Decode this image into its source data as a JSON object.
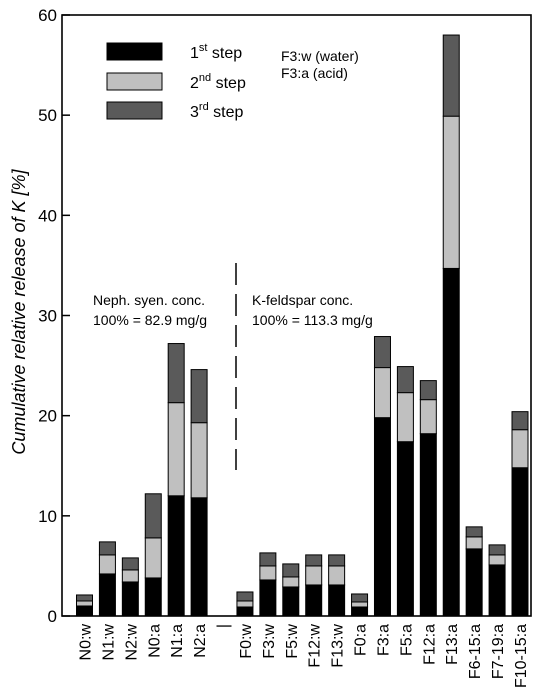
{
  "chart_data": {
    "type": "bar",
    "stacked": true,
    "ylabel": "Cumulative relative release of K [%]",
    "ylim": [
      0,
      60
    ],
    "yticks": [
      0,
      10,
      20,
      30,
      40,
      50,
      60
    ],
    "grid": false,
    "legend_position": "top-left",
    "categories": [
      "N0:w",
      "N1:w",
      "N2:w",
      "N0:a",
      "N1:a",
      "N2:a",
      "|",
      "F0:w",
      "F3:w",
      "F5:w",
      "F12:w",
      "F13:w",
      "F0:a",
      "F3:a",
      "F5:a",
      "F12:a",
      "F13:a",
      "F6-15:a",
      "F7-19:a",
      "F10-15:a"
    ],
    "series": [
      {
        "name": "1st step",
        "color": "#000000",
        "values": [
          1.0,
          4.2,
          3.4,
          3.8,
          12.0,
          11.8,
          null,
          0.9,
          3.6,
          2.9,
          3.1,
          3.1,
          0.9,
          19.8,
          17.4,
          18.2,
          34.7,
          6.7,
          5.1,
          14.8
        ]
      },
      {
        "name": "2nd step",
        "color": "#c0c0c0",
        "values": [
          0.5,
          1.9,
          1.2,
          4.0,
          9.3,
          7.5,
          null,
          0.6,
          1.4,
          1.0,
          1.9,
          1.9,
          0.5,
          5.0,
          4.9,
          3.4,
          15.2,
          1.2,
          1.0,
          3.8
        ]
      },
      {
        "name": "3rd step",
        "color": "#5a5a5a",
        "values": [
          0.6,
          1.3,
          1.2,
          4.4,
          5.9,
          5.3,
          null,
          0.9,
          1.3,
          1.3,
          1.1,
          1.1,
          0.8,
          3.1,
          2.6,
          1.9,
          8.1,
          1.0,
          1.0,
          1.8
        ]
      }
    ],
    "annotations": {
      "group_left": [
        "Neph. syen. conc.",
        "100% = 82.9 mg/g"
      ],
      "group_right": [
        "K-feldspar conc.",
        "100% = 113.3 mg/g"
      ],
      "key_note": [
        "F3:w (water)",
        "F3:a (acid)"
      ]
    },
    "legend": [
      {
        "base": "1",
        "sup": "st",
        "rest": " step",
        "color": "#000000"
      },
      {
        "base": "2",
        "sup": "nd",
        "rest": " step",
        "color": "#c0c0c0"
      },
      {
        "base": "3",
        "sup": "rd",
        "rest": " step",
        "color": "#5a5a5a"
      }
    ]
  }
}
